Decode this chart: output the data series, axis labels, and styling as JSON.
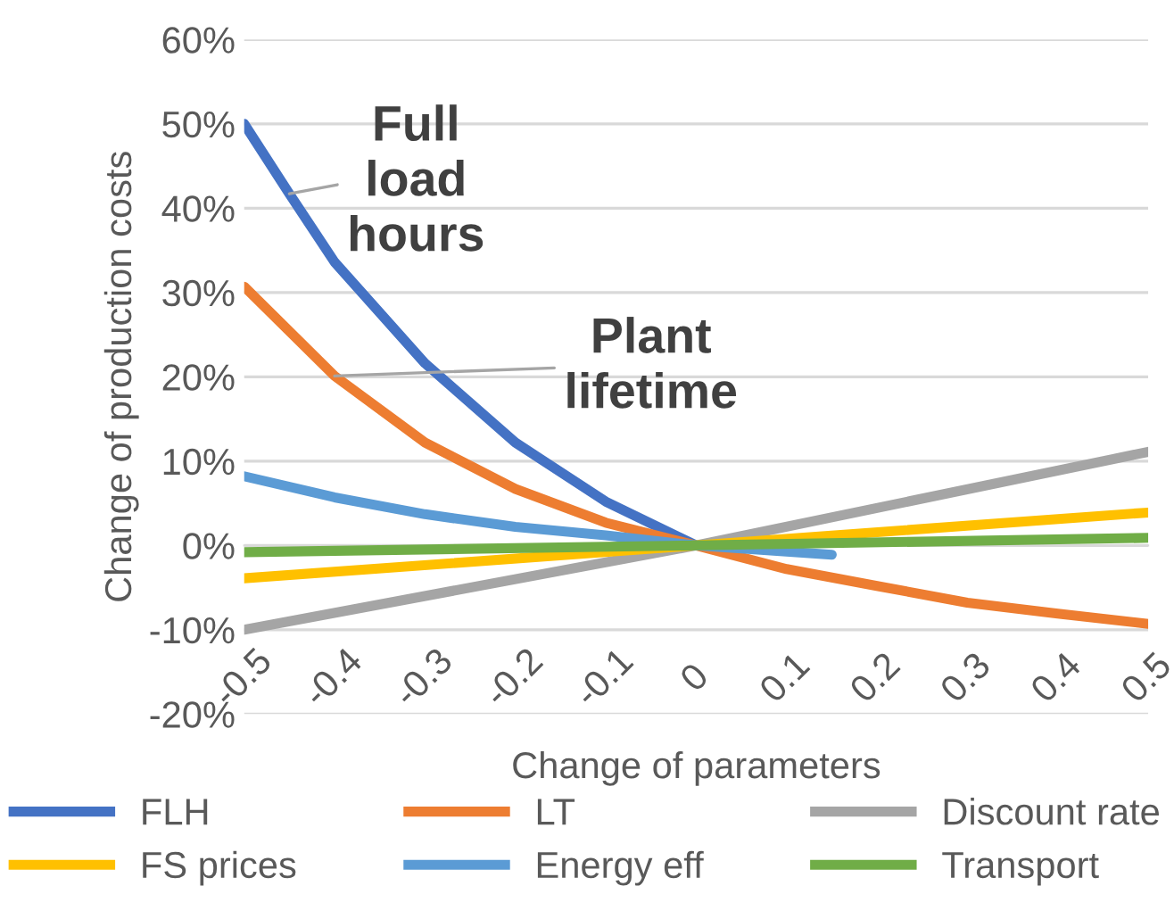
{
  "chart_data": {
    "type": "line",
    "xlabel": "Change of parameters",
    "ylabel": "Change of production costs",
    "xlim": [
      -0.5,
      0.5
    ],
    "ylim": [
      -20,
      60
    ],
    "xticks": [
      {
        "value": -0.5,
        "label": "-0.5"
      },
      {
        "value": -0.4,
        "label": "-0.4"
      },
      {
        "value": -0.3,
        "label": "-0.3"
      },
      {
        "value": -0.2,
        "label": "-0.2"
      },
      {
        "value": -0.1,
        "label": "-0.1"
      },
      0,
      0.1,
      0.2,
      0.3,
      0.4,
      0.5
    ],
    "yticks": [
      {
        "value": -20,
        "label": "-20%"
      },
      {
        "value": -10,
        "label": "-10%"
      },
      {
        "value": 0,
        "label": "0%"
      },
      {
        "value": 10,
        "label": "10%"
      },
      {
        "value": 20,
        "label": "20%"
      },
      {
        "value": 30,
        "label": "30%"
      },
      {
        "value": 40,
        "label": "40%"
      },
      {
        "value": 50,
        "label": "50%"
      },
      {
        "value": 60,
        "label": "60%"
      }
    ],
    "grid": "y",
    "legend": "bottom",
    "marker": "none",
    "line_style": "solid",
    "series": [
      {
        "name": "FLH",
        "color": "#4472c4",
        "x": [
          -0.5,
          -0.45,
          -0.4,
          -0.3,
          -0.2,
          -0.1,
          0
        ],
        "values": [
          50,
          41.7,
          33.6,
          21.6,
          12.2,
          5.2,
          0
        ]
      },
      {
        "name": "LT",
        "color": "#ed7d31",
        "x": [
          -0.5,
          -0.4,
          -0.3,
          -0.2,
          -0.1,
          0,
          0.1,
          0.2,
          0.3,
          0.4,
          0.5
        ],
        "values": [
          30.7,
          20.1,
          12.2,
          6.7,
          2.7,
          0,
          -2.8,
          -4.8,
          -6.8,
          -8.1,
          -9.3
        ]
      },
      {
        "name": "Discount rate",
        "color": "#a5a5a5",
        "x": [
          -0.5,
          0,
          0.5
        ],
        "values": [
          -10,
          0,
          11.1
        ]
      },
      {
        "name": "FS prices",
        "color": "#ffc000",
        "x": [
          -0.5,
          0,
          0.5
        ],
        "values": [
          -3.9,
          0,
          3.9
        ]
      },
      {
        "name": "Energy eff",
        "color": "#5b9bd5",
        "x": [
          -0.5,
          -0.4,
          -0.3,
          -0.2,
          -0.1,
          0,
          0.15
        ],
        "values": [
          8.2,
          5.7,
          3.7,
          2.2,
          1.2,
          0,
          -1.1
        ]
      },
      {
        "name": "Transport",
        "color": "#70ad47",
        "x": [
          -0.5,
          0,
          0.5
        ],
        "values": [
          -0.8,
          0,
          0.9
        ]
      }
    ],
    "annotations": [
      {
        "text": "Full\nload\nhours",
        "x": -0.45,
        "y": 41.7
      },
      {
        "text": "Plant\nlifetime",
        "x": -0.4,
        "y": 20.1
      }
    ]
  }
}
